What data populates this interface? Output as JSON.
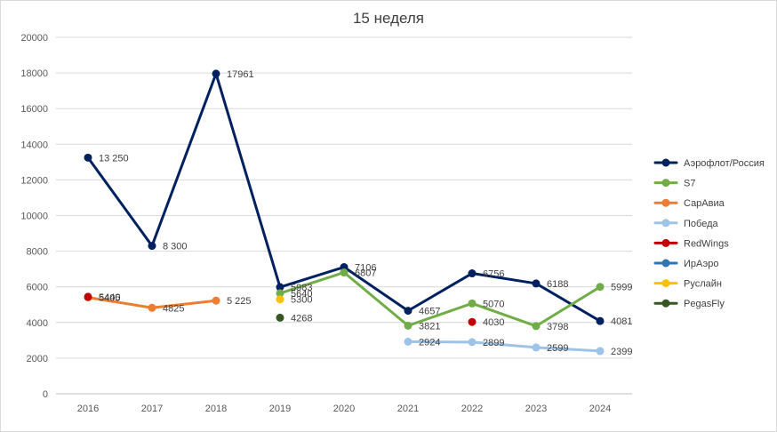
{
  "chart_data": {
    "type": "line",
    "title": "15 неделя",
    "xlabel": "",
    "ylabel": "",
    "categories": [
      "2016",
      "2017",
      "2018",
      "2019",
      "2020",
      "2021",
      "2022",
      "2023",
      "2024"
    ],
    "ylim": [
      0,
      20000
    ],
    "yticks": [
      0,
      2000,
      4000,
      6000,
      8000,
      10000,
      12000,
      14000,
      16000,
      18000,
      20000
    ],
    "grid": true,
    "legend_position": "right",
    "series": [
      {
        "name": "Аэрофлот/Россия",
        "color": "#002060",
        "values": [
          13250,
          8300,
          17961,
          5983,
          7106,
          4657,
          6756,
          6188,
          4081
        ],
        "labels": [
          "13 250",
          "8 300",
          "17961",
          "5983",
          "7106",
          "4657",
          "6756",
          "6188",
          "4081"
        ]
      },
      {
        "name": "S7",
        "color": "#70ad47",
        "values": [
          null,
          null,
          null,
          5640,
          6807,
          3821,
          5070,
          3798,
          5999
        ],
        "labels": [
          "",
          "",
          "",
          "5640",
          "6807",
          "3821",
          "5070",
          "3798",
          "5999"
        ]
      },
      {
        "name": "СарАвиа",
        "color": "#ed7d31",
        "values": [
          5405,
          4825,
          5225,
          null,
          null,
          null,
          null,
          null,
          null
        ],
        "labels": [
          "5405",
          "4825",
          "5 225",
          "",
          "",
          "",
          "",
          "",
          ""
        ]
      },
      {
        "name": "Победа",
        "color": "#9dc3e6",
        "values": [
          null,
          null,
          null,
          null,
          null,
          2924,
          2899,
          2599,
          2399
        ],
        "labels": [
          "",
          "",
          "",
          "",
          "",
          "2924",
          "2899",
          "2599",
          "2399"
        ]
      },
      {
        "name": "RedWings",
        "color": "#c00000",
        "values": [
          5440,
          null,
          null,
          null,
          null,
          null,
          4030,
          null,
          null
        ],
        "labels": [
          "5440",
          "",
          "",
          "",
          "",
          "",
          "4030",
          "",
          ""
        ]
      },
      {
        "name": "ИрАэро",
        "color": "#2e75b6",
        "values": [
          null,
          null,
          null,
          null,
          null,
          null,
          null,
          null,
          null
        ],
        "labels": [
          "",
          "",
          "",
          "",
          "",
          "",
          "",
          "",
          ""
        ]
      },
      {
        "name": "Руслайн",
        "color": "#ffc000",
        "values": [
          null,
          null,
          null,
          5300,
          null,
          null,
          null,
          null,
          null
        ],
        "labels": [
          "",
          "",
          "",
          "5300",
          "",
          "",
          "",
          "",
          ""
        ]
      },
      {
        "name": "PegasFly",
        "color": "#375623",
        "values": [
          null,
          null,
          null,
          4268,
          null,
          null,
          null,
          null,
          null
        ],
        "labels": [
          "",
          "",
          "",
          "4268",
          "",
          "",
          "",
          "",
          ""
        ]
      }
    ]
  }
}
